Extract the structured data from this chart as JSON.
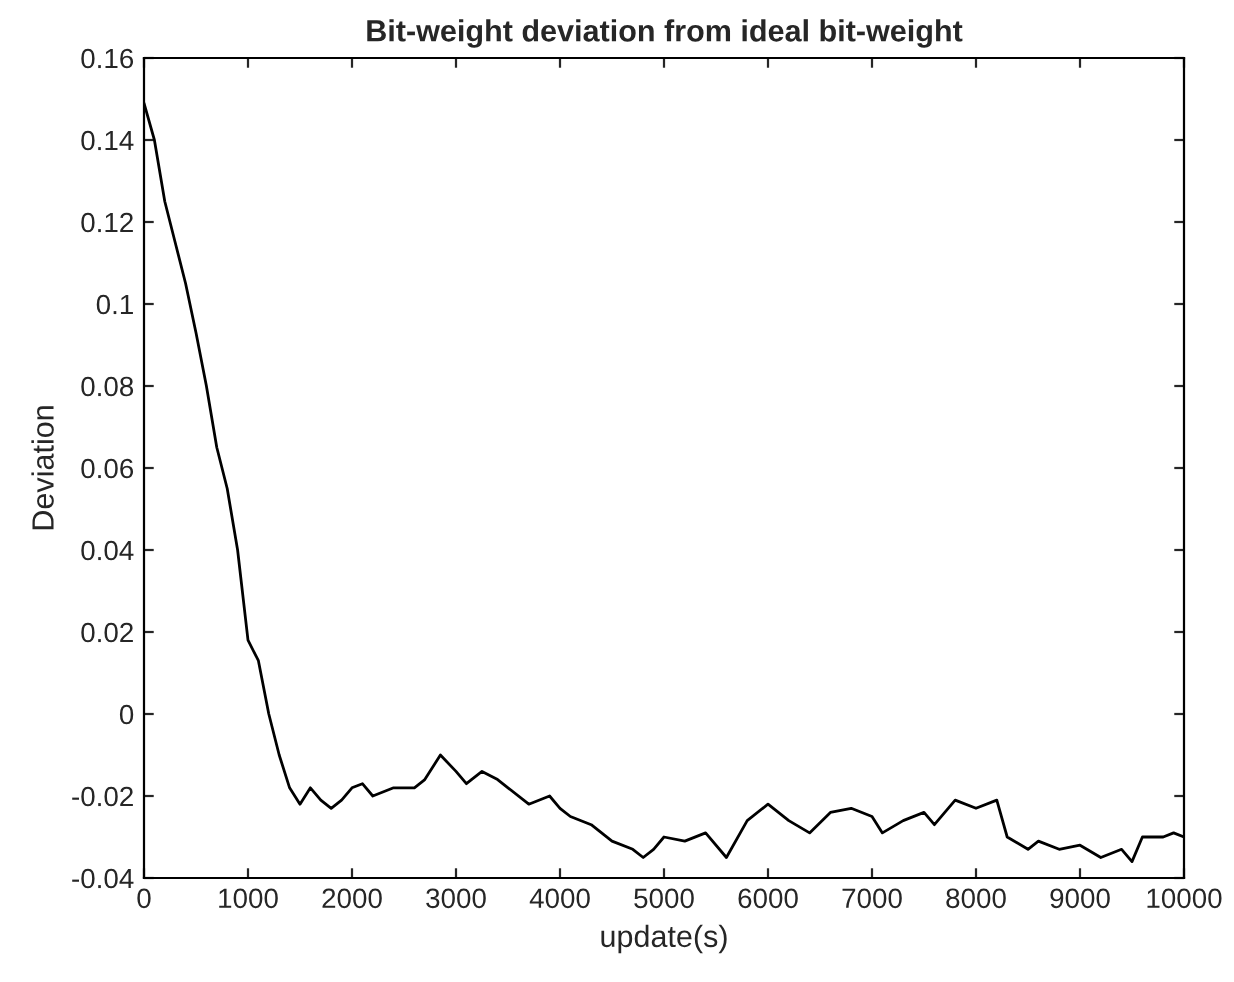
{
  "chart_data": {
    "type": "line",
    "title": "Bit-weight deviation from ideal bit-weight",
    "xlabel": "update(s)",
    "ylabel": "Deviation",
    "x": [
      0,
      100,
      200,
      300,
      400,
      500,
      600,
      700,
      800,
      900,
      1000,
      1100,
      1200,
      1300,
      1400,
      1500,
      1600,
      1700,
      1800,
      1900,
      2000,
      2100,
      2200,
      2400,
      2600,
      2700,
      2850,
      3000,
      3100,
      3250,
      3400,
      3500,
      3700,
      3900,
      4000,
      4100,
      4300,
      4500,
      4700,
      4800,
      4900,
      5000,
      5200,
      5400,
      5600,
      5800,
      6000,
      6200,
      6400,
      6600,
      6800,
      7000,
      7100,
      7300,
      7500,
      7600,
      7800,
      8000,
      8200,
      8300,
      8500,
      8600,
      8800,
      9000,
      9200,
      9400,
      9500,
      9600,
      9800,
      9900,
      10000
    ],
    "series": [
      {
        "color": "#000000",
        "values": [
          0.149,
          0.14,
          0.125,
          0.115,
          0.105,
          0.093,
          0.08,
          0.065,
          0.055,
          0.04,
          0.018,
          0.013,
          0.0,
          -0.01,
          -0.018,
          -0.022,
          -0.018,
          -0.021,
          -0.023,
          -0.021,
          -0.018,
          -0.017,
          -0.02,
          -0.018,
          -0.018,
          -0.016,
          -0.01,
          -0.014,
          -0.017,
          -0.014,
          -0.016,
          -0.018,
          -0.022,
          -0.02,
          -0.023,
          -0.025,
          -0.027,
          -0.031,
          -0.033,
          -0.035,
          -0.033,
          -0.03,
          -0.031,
          -0.029,
          -0.035,
          -0.026,
          -0.022,
          -0.026,
          -0.029,
          -0.024,
          -0.023,
          -0.025,
          -0.029,
          -0.026,
          -0.024,
          -0.027,
          -0.021,
          -0.023,
          -0.021,
          -0.03,
          -0.033,
          -0.031,
          -0.033,
          -0.032,
          -0.035,
          -0.033,
          -0.036,
          -0.03,
          -0.03,
          -0.029,
          -0.03
        ]
      }
    ],
    "xlim": [
      0,
      10000
    ],
    "xticks": [
      0,
      1000,
      2000,
      3000,
      4000,
      5000,
      6000,
      7000,
      8000,
      9000,
      10000
    ],
    "ylim": [
      -0.04,
      0.16
    ],
    "yticks": [
      {
        "value": -0.04,
        "label": "-0.04"
      },
      {
        "value": -0.02,
        "label": "-0.02"
      },
      0,
      0.02,
      0.04,
      0.06,
      0.08,
      0.1,
      0.12,
      0.14,
      0.16
    ],
    "grid": false
  }
}
